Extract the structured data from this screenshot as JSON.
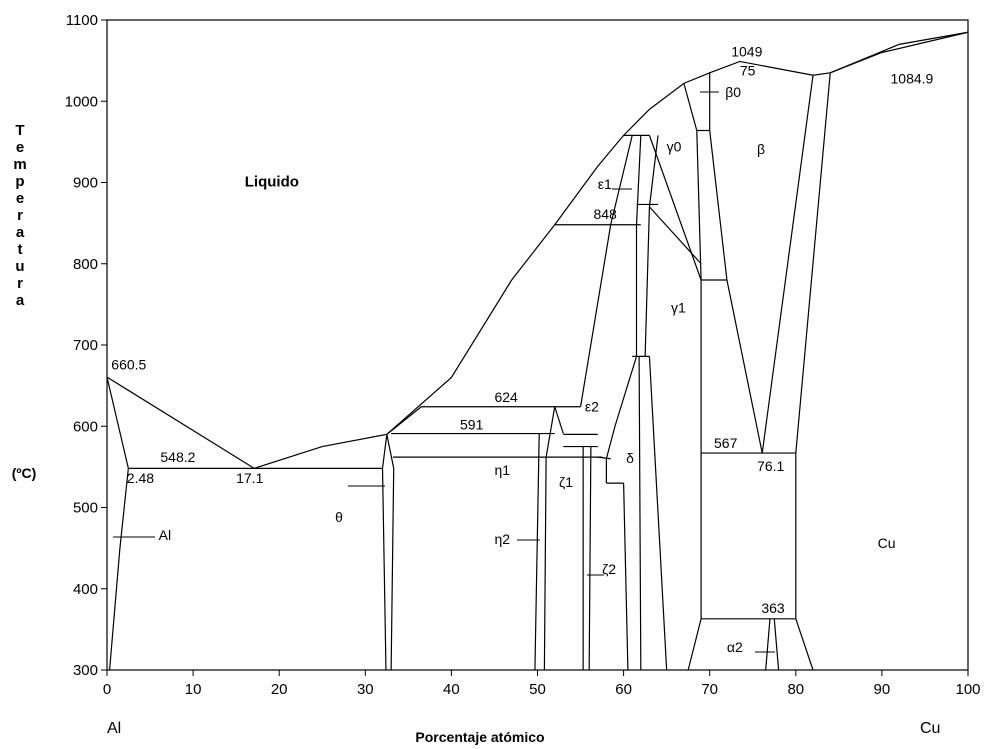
{
  "chart_data": {
    "type": "phase_diagram",
    "y_label": "Temperatura",
    "y_unit": "(ºC)",
    "x_label": "Porcentaje atómico",
    "x_left_label": "Al",
    "x_right_label": "Cu",
    "xlim": [
      0,
      100
    ],
    "xticks": [
      0,
      10,
      20,
      30,
      40,
      50,
      60,
      70,
      80,
      90,
      100
    ],
    "ylim": [
      300,
      1100
    ],
    "yticks": [
      300,
      400,
      500,
      600,
      700,
      800,
      900,
      1000,
      1100
    ],
    "lines": [
      {
        "x": [
          0,
          17.1,
          25,
          32.5,
          40,
          47,
          52,
          57,
          60,
          63,
          67,
          70,
          73.5,
          78,
          82,
          84,
          90,
          100
        ],
        "y": [
          660.5,
          548.2,
          575,
          590,
          660,
          780,
          848,
          920,
          958,
          990,
          1022,
          1035,
          1049,
          1040,
          1032,
          1035,
          1060,
          1084.9
        ]
      },
      {
        "x": [
          84,
          92,
          100
        ],
        "y": [
          1035,
          1070,
          1084.9
        ]
      },
      {
        "x": [
          0,
          2.48
        ],
        "y": [
          660.5,
          548.2
        ]
      },
      {
        "x": [
          2.48,
          1.5,
          0.3
        ],
        "y": [
          548.2,
          450,
          300
        ]
      },
      {
        "x": [
          2.48,
          32
        ],
        "y": [
          548.2,
          548.2
        ]
      },
      {
        "x": [
          32,
          32.5,
          33.3,
          33
        ],
        "y": [
          548.2,
          590,
          548.2,
          300
        ]
      },
      {
        "x": [
          32,
          32.4
        ],
        "y": [
          548.2,
          300
        ]
      },
      {
        "x": [
          33,
          52
        ],
        "y": [
          591,
          591
        ]
      },
      {
        "x": [
          36.5,
          55
        ],
        "y": [
          624,
          624
        ]
      },
      {
        "x": [
          32.5,
          36.5
        ],
        "y": [
          590,
          624
        ]
      },
      {
        "x": [
          33.2,
          57.5
        ],
        "y": [
          562,
          562
        ]
      },
      {
        "x": [
          50.2,
          49.7
        ],
        "y": [
          591,
          300
        ]
      },
      {
        "x": [
          52,
          51,
          50.8
        ],
        "y": [
          624,
          562,
          300
        ]
      },
      {
        "x": [
          52,
          53
        ],
        "y": [
          624,
          591
        ]
      },
      {
        "x": [
          53,
          57
        ],
        "y": [
          575,
          575
        ]
      },
      {
        "x": [
          53,
          57
        ],
        "y": [
          590,
          590
        ]
      },
      {
        "x": [
          55.3,
          55.3
        ],
        "y": [
          575,
          300
        ]
      },
      {
        "x": [
          56.2,
          56
        ],
        "y": [
          575,
          300
        ]
      },
      {
        "x": [
          55,
          58.5,
          61
        ],
        "y": [
          624,
          848,
          958
        ]
      },
      {
        "x": [
          57,
          58.5
        ],
        "y": [
          562,
          560
        ]
      },
      {
        "x": [
          58,
          60
        ],
        "y": [
          530,
          530
        ]
      },
      {
        "x": [
          58,
          58,
          59,
          61.5
        ],
        "y": [
          530,
          560,
          600,
          686
        ]
      },
      {
        "x": [
          60,
          60.5
        ],
        "y": [
          530,
          300
        ]
      },
      {
        "x": [
          61.8,
          62
        ],
        "y": [
          686,
          300
        ]
      },
      {
        "x": [
          63,
          65
        ],
        "y": [
          686,
          300
        ]
      },
      {
        "x": [
          61,
          63
        ],
        "y": [
          686,
          686
        ]
      },
      {
        "x": [
          61.5,
          61.5,
          62
        ],
        "y": [
          686,
          848,
          958
        ]
      },
      {
        "x": [
          62.5,
          63,
          64
        ],
        "y": [
          686,
          870,
          958
        ]
      },
      {
        "x": [
          52,
          62
        ],
        "y": [
          848,
          848
        ]
      },
      {
        "x": [
          61.5,
          64
        ],
        "y": [
          873,
          873
        ]
      },
      {
        "x": [
          60,
          63
        ],
        "y": [
          958,
          958
        ]
      },
      {
        "x": [
          63,
          69
        ],
        "y": [
          958,
          780
        ]
      },
      {
        "x": [
          63,
          69
        ],
        "y": [
          870,
          800
        ]
      },
      {
        "x": [
          67,
          68.5,
          69,
          69,
          67.5
        ],
        "y": [
          1022,
          964,
          780,
          363,
          300
        ]
      },
      {
        "x": [
          68.5,
          70
        ],
        "y": [
          964,
          964
        ]
      },
      {
        "x": [
          70,
          70
        ],
        "y": [
          964,
          1035
        ]
      },
      {
        "x": [
          69,
          72
        ],
        "y": [
          780,
          780
        ]
      },
      {
        "x": [
          70,
          72,
          76.1,
          82
        ],
        "y": [
          964,
          780,
          567,
          1032
        ]
      },
      {
        "x": [
          80,
          84
        ],
        "y": [
          567,
          1035
        ]
      },
      {
        "x": [
          69,
          80
        ],
        "y": [
          567,
          567
        ]
      },
      {
        "x": [
          80,
          80,
          82
        ],
        "y": [
          567,
          363,
          300
        ]
      },
      {
        "x": [
          69,
          80
        ],
        "y": [
          363,
          363
        ]
      },
      {
        "x": [
          77,
          76.5
        ],
        "y": [
          363,
          300
        ]
      },
      {
        "x": [
          77.5,
          78
        ],
        "y": [
          363,
          300
        ]
      }
    ],
    "annotations": [
      {
        "text": "Liquido",
        "x": 16,
        "y": 895
      },
      {
        "text": "660.5",
        "x": 0.5,
        "y": 670
      },
      {
        "text": "548.2",
        "x": 6.2,
        "y": 556
      },
      {
        "text": "2.48",
        "x": 2.3,
        "y": 530
      },
      {
        "text": "17.1",
        "x": 15,
        "y": 530
      },
      {
        "text": "624",
        "x": 45,
        "y": 630
      },
      {
        "text": "591",
        "x": 41,
        "y": 596
      },
      {
        "text": "848",
        "x": 56.5,
        "y": 855
      },
      {
        "text": "1049",
        "x": 72.5,
        "y": 1055
      },
      {
        "text": "75",
        "x": 73.5,
        "y": 1032
      },
      {
        "text": "1084.9",
        "x": 91,
        "y": 1022
      },
      {
        "text": "567",
        "x": 70.5,
        "y": 573
      },
      {
        "text": "76.1",
        "x": 75.5,
        "y": 545
      },
      {
        "text": "363",
        "x": 76,
        "y": 370
      },
      {
        "text": "θ",
        "x": 26.5,
        "y": 482
      },
      {
        "text": "Al",
        "x": 6,
        "y": 460
      },
      {
        "text": "η1",
        "x": 45,
        "y": 540
      },
      {
        "text": "η2",
        "x": 45,
        "y": 455
      },
      {
        "text": "ζ1",
        "x": 52.5,
        "y": 525
      },
      {
        "text": "ζ2",
        "x": 57.5,
        "y": 418
      },
      {
        "text": "δ",
        "x": 60.3,
        "y": 555
      },
      {
        "text": "ε2",
        "x": 55.5,
        "y": 618
      },
      {
        "text": "ε1",
        "x": 57,
        "y": 892
      },
      {
        "text": "γ0",
        "x": 65,
        "y": 938
      },
      {
        "text": "γ1",
        "x": 65.5,
        "y": 740
      },
      {
        "text": "β0",
        "x": 71.8,
        "y": 1005
      },
      {
        "text": "β",
        "x": 75.5,
        "y": 935
      },
      {
        "text": "Cu",
        "x": 89.5,
        "y": 450
      },
      {
        "text": "α2",
        "x": 72,
        "y": 322
      }
    ]
  }
}
